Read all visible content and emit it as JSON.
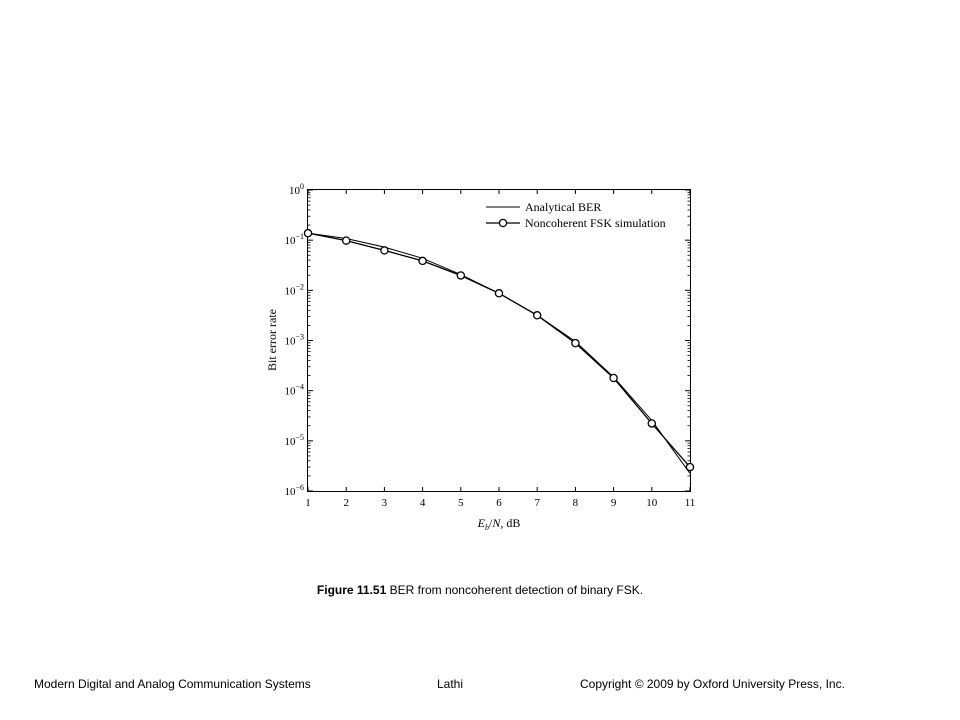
{
  "chart_data": {
    "type": "line",
    "xlabel": "E_b/N, dB",
    "ylabel": "Bit error rate",
    "xlim": [
      1,
      11
    ],
    "ylim": [
      1e-06,
      1
    ],
    "yscale": "log",
    "x_ticks": [
      1,
      2,
      3,
      4,
      5,
      6,
      7,
      8,
      9,
      10,
      11
    ],
    "y_tick_exponents": [
      0,
      -1,
      -2,
      -3,
      -4,
      -5,
      -6
    ],
    "legend_position": "top-right",
    "grid": false,
    "series": [
      {
        "name": "Analytical BER",
        "style": "solid",
        "x": [
          1,
          2,
          3,
          4,
          5,
          6,
          7,
          8,
          9,
          10,
          11
        ],
        "y": [
          0.138,
          0.108,
          0.0727,
          0.0436,
          0.0206,
          0.00873,
          0.00318,
          0.000953,
          0.000186,
          2.55e-05,
          2.24e-06
        ]
      },
      {
        "name": "Noncoherent FSK simulation",
        "style": "circle-markers",
        "x": [
          1,
          2,
          3,
          4,
          5,
          6,
          7,
          8,
          9,
          10,
          11
        ],
        "y": [
          0.138,
          0.098,
          0.0625,
          0.0386,
          0.0198,
          0.00873,
          0.00318,
          0.000887,
          0.000179,
          2.22e-05,
          3e-06
        ]
      }
    ]
  },
  "caption": {
    "label": "Figure 11.51",
    "text": " BER from noncoherent detection of binary FSK."
  },
  "footer": {
    "left": "Modern Digital and Analog Communication Systems",
    "center": "Lathi",
    "right": "Copyright © 2009 by Oxford University Press, Inc."
  }
}
